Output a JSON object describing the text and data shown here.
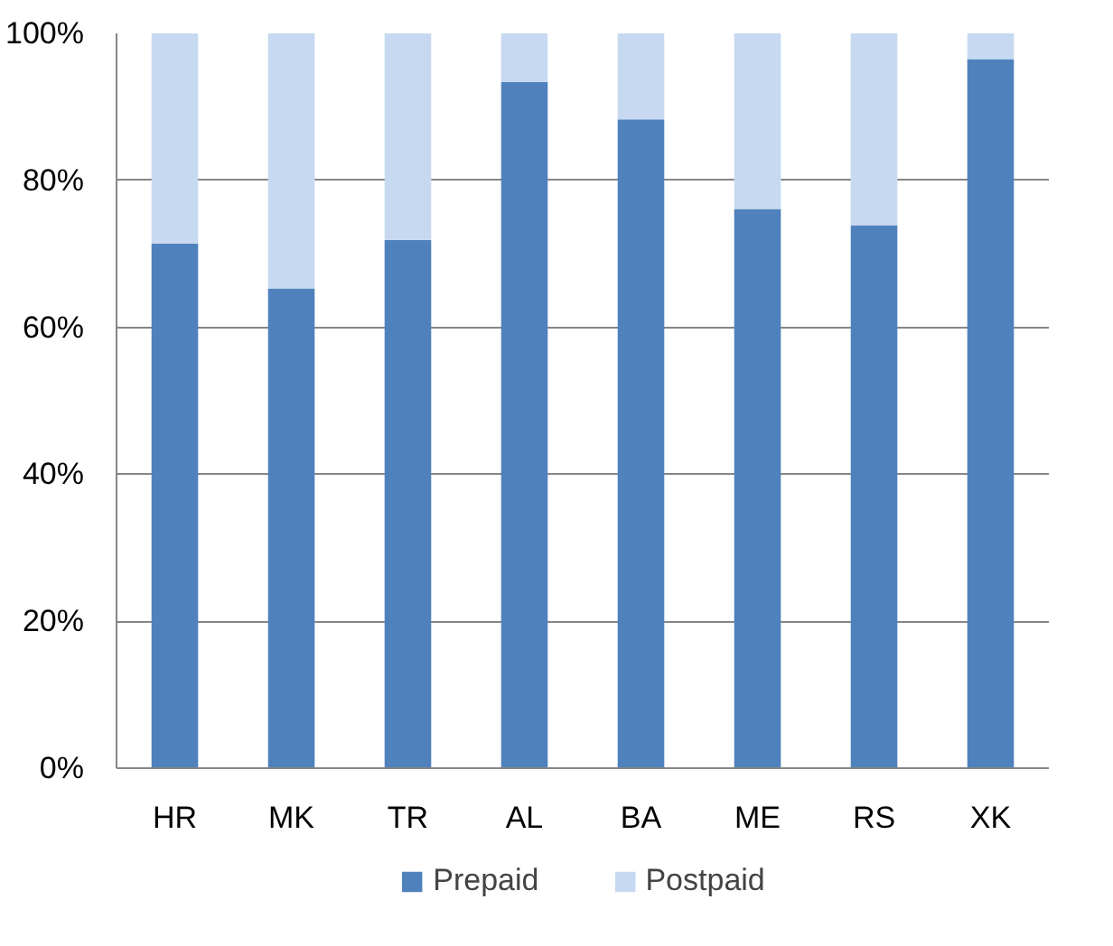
{
  "chart_data": {
    "type": "bar",
    "stacked": true,
    "categories": [
      "HR",
      "MK",
      "TR",
      "AL",
      "BA",
      "ME",
      "RS",
      "XK"
    ],
    "series": [
      {
        "name": "Prepaid",
        "color": "#4f81bd",
        "values": [
          71.4,
          65.3,
          71.9,
          93.4,
          88.3,
          76.1,
          73.9,
          96.5
        ]
      },
      {
        "name": "Postpaid",
        "color": "#c6d9f1",
        "values": [
          28.6,
          34.7,
          28.1,
          6.6,
          11.7,
          23.9,
          26.1,
          3.5
        ]
      }
    ],
    "ylim": [
      0,
      100
    ],
    "yticks": [
      {
        "value": 0,
        "label": "0%"
      },
      {
        "value": 20,
        "label": "20%"
      },
      {
        "value": 40,
        "label": "40%"
      },
      {
        "value": 60,
        "label": "60%"
      },
      {
        "value": 80,
        "label": "80%"
      },
      {
        "value": 100,
        "label": "100%"
      }
    ],
    "grid": "y",
    "legend": "bottom"
  }
}
